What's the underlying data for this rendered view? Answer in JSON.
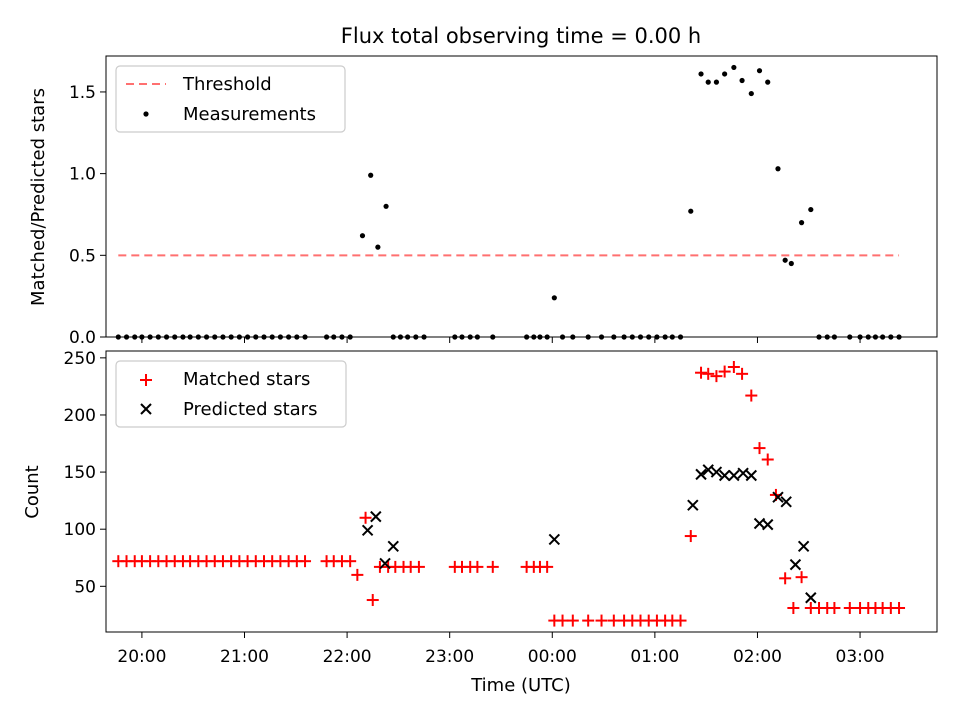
{
  "title": "Flux total observing time = 0.00 h",
  "xlabel": "Time (UTC)",
  "chart_data": [
    {
      "type": "scatter",
      "title": "Flux total observing time = 0.00 h",
      "ylabel": "Matched/Predicted stars",
      "xlabel": "",
      "x_unit": "hours UTC (values past 24 are the following day)",
      "xlim": [
        19.65,
        27.75
      ],
      "ylim": [
        0,
        1.72
      ],
      "yticks": [
        0.0,
        0.5,
        1.0,
        1.5
      ],
      "ytick_labels": [
        "0.0",
        "0.5",
        "1.0",
        "1.5"
      ],
      "legend_position": "upper-left",
      "threshold": {
        "name": "Threshold",
        "value": 0.5,
        "x_range": [
          19.77,
          27.38
        ],
        "color": "#ff7070"
      },
      "series": [
        {
          "name": "Measurements",
          "color": "#000000",
          "marker": "dot",
          "x": [
            19.77,
            19.85,
            19.93,
            20.0,
            20.08,
            20.16,
            20.24,
            20.32,
            20.4,
            20.47,
            20.55,
            20.63,
            20.71,
            20.79,
            20.87,
            20.95,
            21.03,
            21.11,
            21.19,
            21.27,
            21.35,
            21.43,
            21.51,
            21.59,
            21.8,
            21.87,
            21.95,
            22.03,
            22.15,
            22.23,
            22.3,
            22.38,
            22.45,
            22.52,
            22.59,
            22.67,
            22.75,
            23.05,
            23.12,
            23.2,
            23.27,
            23.42,
            23.75,
            23.82,
            23.88,
            23.95,
            24.02,
            24.1,
            24.2,
            24.35,
            24.48,
            24.6,
            24.7,
            24.78,
            24.86,
            24.94,
            25.02,
            25.1,
            25.17,
            25.25,
            25.35,
            25.45,
            25.52,
            25.6,
            25.68,
            25.77,
            25.85,
            25.94,
            26.02,
            26.1,
            26.2,
            26.27,
            26.33,
            26.43,
            26.52,
            26.6,
            26.68,
            26.75,
            26.9,
            27.0,
            27.08,
            27.15,
            27.22,
            27.3,
            27.38
          ],
          "y": [
            0,
            0,
            0,
            0,
            0,
            0,
            0,
            0,
            0,
            0,
            0,
            0,
            0,
            0,
            0,
            0,
            0,
            0,
            0,
            0,
            0,
            0,
            0,
            0,
            0,
            0,
            0,
            0,
            0.62,
            0.99,
            0.55,
            0.8,
            0,
            0,
            0,
            0,
            0,
            0,
            0,
            0,
            0,
            0,
            0,
            0,
            0,
            0,
            0.24,
            0,
            0,
            0,
            0,
            0,
            0,
            0,
            0,
            0,
            0,
            0,
            0,
            0,
            0.77,
            1.61,
            1.56,
            1.56,
            1.61,
            1.65,
            1.57,
            1.49,
            1.63,
            1.56,
            1.03,
            0.47,
            0.45,
            0.7,
            0.78,
            0,
            0,
            0,
            0,
            0,
            0,
            0,
            0,
            0,
            0
          ]
        }
      ]
    },
    {
      "type": "scatter",
      "title": "",
      "ylabel": "Count",
      "xlabel": "Time (UTC)",
      "xlim": [
        19.65,
        27.75
      ],
      "ylim": [
        10,
        256
      ],
      "yticks": [
        50,
        100,
        150,
        200,
        250
      ],
      "ytick_labels": [
        "50",
        "100",
        "150",
        "200",
        "250"
      ],
      "xticks": [
        20,
        21,
        22,
        23,
        24,
        25,
        26,
        27
      ],
      "xtick_labels": [
        "20:00",
        "21:00",
        "22:00",
        "23:00",
        "00:00",
        "01:00",
        "02:00",
        "03:00"
      ],
      "legend_position": "upper-left",
      "series": [
        {
          "name": "Matched stars",
          "color": "#ff0000",
          "marker": "plus",
          "x": [
            19.77,
            19.85,
            19.93,
            20.0,
            20.08,
            20.16,
            20.24,
            20.32,
            20.4,
            20.47,
            20.55,
            20.63,
            20.71,
            20.79,
            20.87,
            20.95,
            21.03,
            21.11,
            21.19,
            21.27,
            21.35,
            21.43,
            21.51,
            21.59,
            21.8,
            21.87,
            21.95,
            22.03,
            22.1,
            22.18,
            22.25,
            22.32,
            22.4,
            22.47,
            22.55,
            22.62,
            22.7,
            23.05,
            23.12,
            23.2,
            23.27,
            23.42,
            23.75,
            23.82,
            23.88,
            23.95,
            24.02,
            24.1,
            24.2,
            24.35,
            24.48,
            24.6,
            24.7,
            24.78,
            24.86,
            24.94,
            25.02,
            25.1,
            25.17,
            25.25,
            25.35,
            25.45,
            25.52,
            25.6,
            25.68,
            25.77,
            25.85,
            25.94,
            26.02,
            26.1,
            26.18,
            26.27,
            26.35,
            26.43,
            26.52,
            26.6,
            26.68,
            26.75,
            26.9,
            27.0,
            27.08,
            27.15,
            27.22,
            27.3,
            27.38
          ],
          "y": [
            72,
            72,
            72,
            72,
            72,
            72,
            72,
            72,
            72,
            72,
            72,
            72,
            72,
            72,
            72,
            72,
            72,
            72,
            72,
            72,
            72,
            72,
            72,
            72,
            72,
            72,
            72,
            72,
            60,
            110,
            38,
            67,
            67,
            67,
            67,
            67,
            67,
            67,
            67,
            67,
            67,
            67,
            67,
            67,
            67,
            67,
            20,
            20,
            20,
            20,
            20,
            20,
            20,
            20,
            20,
            20,
            20,
            20,
            20,
            20,
            94,
            237,
            236,
            234,
            238,
            242,
            236,
            217,
            171,
            161,
            130,
            57,
            31,
            58,
            31,
            31,
            31,
            31,
            31,
            31,
            31,
            31,
            31,
            31,
            31
          ]
        },
        {
          "name": "Predicted stars",
          "color": "#000000",
          "marker": "x",
          "x": [
            22.2,
            22.28,
            22.37,
            22.45,
            24.02,
            25.37,
            25.45,
            25.52,
            25.6,
            25.68,
            25.77,
            25.86,
            25.94,
            26.02,
            26.1,
            26.2,
            26.28,
            26.37,
            26.45,
            26.52
          ],
          "y": [
            99,
            111,
            70,
            85,
            91,
            121,
            148,
            152,
            150,
            147,
            147,
            149,
            147,
            105,
            104,
            128,
            124,
            69,
            85,
            40
          ]
        }
      ]
    }
  ]
}
